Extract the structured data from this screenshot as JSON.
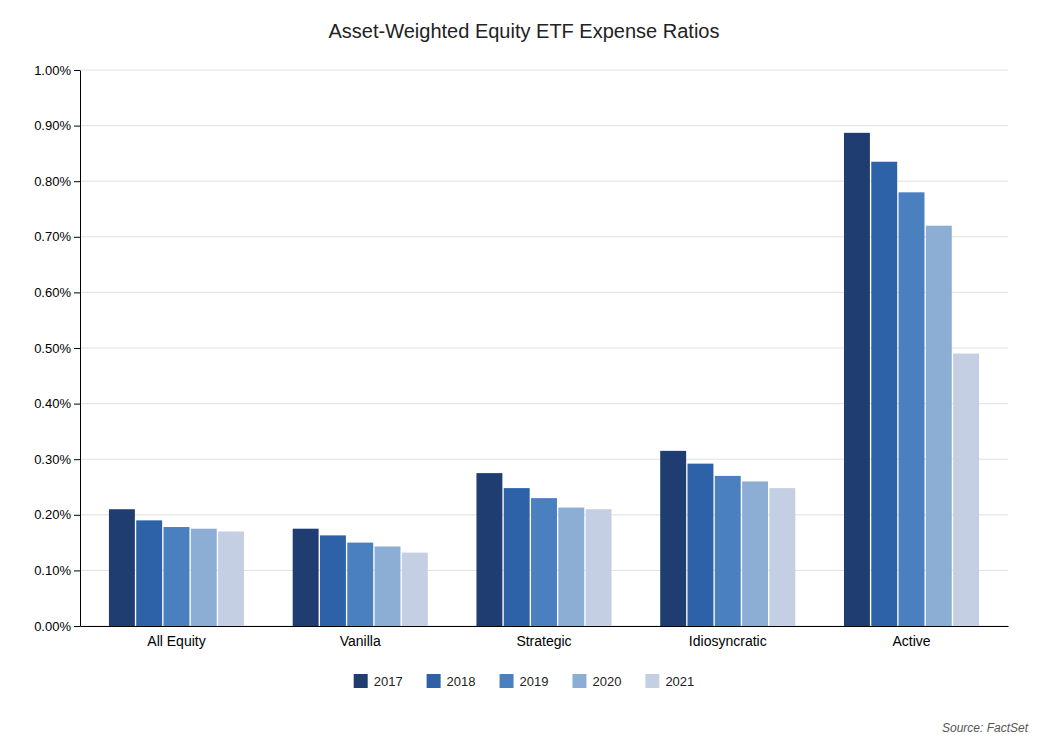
{
  "chart_data": {
    "type": "bar",
    "title": "Asset-Weighted Equity ETF Expense Ratios",
    "categories": [
      "All Equity",
      "Vanilla",
      "Strategic",
      "Idiosyncratic",
      "Active"
    ],
    "series": [
      {
        "name": "2017",
        "color": "#1f3d70",
        "values": [
          0.0021,
          0.00175,
          0.00275,
          0.00315,
          0.00887
        ]
      },
      {
        "name": "2018",
        "color": "#2e62a8",
        "values": [
          0.0019,
          0.00163,
          0.00248,
          0.00292,
          0.00835
        ]
      },
      {
        "name": "2019",
        "color": "#4a80c0",
        "values": [
          0.00178,
          0.0015,
          0.0023,
          0.0027,
          0.0078
        ]
      },
      {
        "name": "2020",
        "color": "#8daed4",
        "values": [
          0.00175,
          0.00143,
          0.00213,
          0.0026,
          0.0072
        ]
      },
      {
        "name": "2021",
        "color": "#c5cfe3",
        "values": [
          0.0017,
          0.00132,
          0.0021,
          0.00248,
          0.0049
        ]
      }
    ],
    "ylim": [
      0,
      0.01
    ],
    "yticks": [
      {
        "value": 0,
        "label": "0.00%"
      },
      {
        "value": 0.001,
        "label": "0.10%"
      },
      {
        "value": 0.002,
        "label": "0.20%"
      },
      {
        "value": 0.003,
        "label": "0.30%"
      },
      {
        "value": 0.004,
        "label": "0.40%"
      },
      {
        "value": 0.005,
        "label": "0.50%"
      },
      {
        "value": 0.006,
        "label": "0.60%"
      },
      {
        "value": 0.007,
        "label": "0.70%"
      },
      {
        "value": 0.008,
        "label": "0.80%"
      },
      {
        "value": 0.009,
        "label": "0.90%"
      },
      {
        "value": 0.01,
        "label": "1.00%"
      }
    ],
    "grid": true,
    "legend": "bottom",
    "annotations": [
      {
        "text": "Source: FactSet"
      }
    ]
  }
}
